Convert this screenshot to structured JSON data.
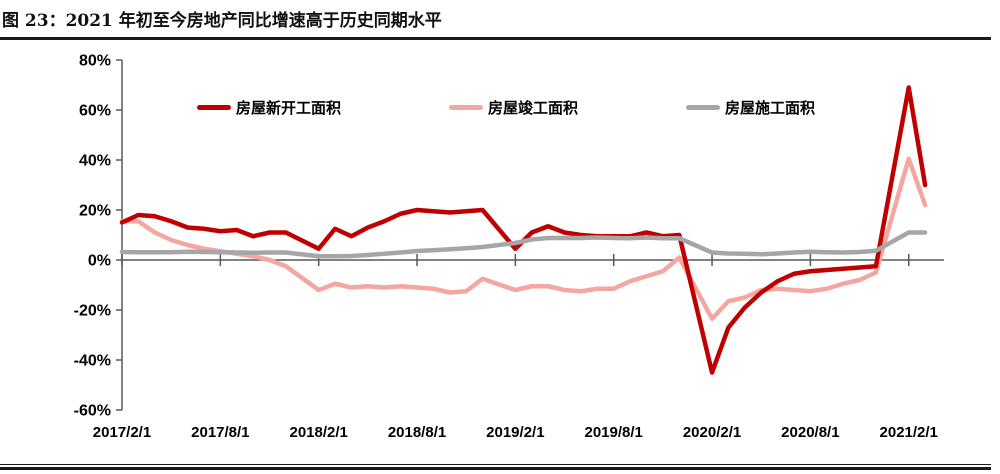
{
  "page": {
    "title": "图 23：2021 年初至今房地产同比增速高于历史同期水平"
  },
  "chart_data": {
    "type": "line",
    "unit": "percent, YoY growth",
    "grid": false,
    "legend_position": "top",
    "axis_color": "#595959",
    "ylim": [
      -60,
      80
    ],
    "ytick_step": 20,
    "y_ticks": [
      "80%",
      "60%",
      "40%",
      "20%",
      "0%",
      "-20%",
      "-40%",
      "-60%"
    ],
    "x_tick_labels": [
      "2017/2/1",
      "2017/8/1",
      "2018/2/1",
      "2018/8/1",
      "2019/2/1",
      "2019/8/1",
      "2020/2/1",
      "2020/8/1",
      "2021/2/1"
    ],
    "x_categories": [
      "2017/2",
      "2017/3",
      "2017/4",
      "2017/5",
      "2017/6",
      "2017/7",
      "2017/8",
      "2017/9",
      "2017/10",
      "2017/11",
      "2017/12",
      "2018/2",
      "2018/3",
      "2018/4",
      "2018/5",
      "2018/6",
      "2018/7",
      "2018/8",
      "2018/9",
      "2018/10",
      "2018/11",
      "2018/12",
      "2019/2",
      "2019/3",
      "2019/4",
      "2019/5",
      "2019/6",
      "2019/7",
      "2019/8",
      "2019/9",
      "2019/10",
      "2019/11",
      "2019/12",
      "2020/2",
      "2020/3",
      "2020/4",
      "2020/5",
      "2020/6",
      "2020/7",
      "2020/8",
      "2020/9",
      "2020/10",
      "2020/11",
      "2020/12",
      "2021/2",
      "2021/3"
    ],
    "series": [
      {
        "name": "房屋新开工面积",
        "color": "#c00000",
        "values": [
          15,
          18,
          17.5,
          15.5,
          13,
          12.5,
          11.5,
          12,
          9.5,
          11,
          11,
          4.5,
          12.5,
          9.5,
          13,
          15.5,
          18.5,
          20,
          19.5,
          19,
          19.5,
          20,
          4.5,
          11,
          13.5,
          11,
          10,
          9.5,
          9.5,
          9.5,
          11,
          9.5,
          10,
          -45,
          -27,
          -19,
          -13,
          -8.5,
          -5.5,
          -4.5,
          -4,
          -3.5,
          -3,
          -2.5,
          69,
          30
        ]
      },
      {
        "name": "房屋竣工面积",
        "color": "#f4a7a0",
        "values": [
          15.5,
          15.5,
          11,
          8,
          6,
          4.5,
          3.5,
          2.5,
          1.5,
          0,
          -2.5,
          -12,
          -9.5,
          -11,
          -10.5,
          -11,
          -10.5,
          -11,
          -11.5,
          -13,
          -12.5,
          -7.5,
          -12,
          -10.5,
          -10.5,
          -12,
          -12.5,
          -11.5,
          -11.5,
          -8.5,
          -6.5,
          -4.5,
          1,
          -23.5,
          -16.5,
          -15,
          -12,
          -11.5,
          -12,
          -12.5,
          -11.5,
          -9.5,
          -8,
          -5,
          40.5,
          22
        ]
      },
      {
        "name": "房屋施工面积",
        "color": "#a6a6a6",
        "values": [
          3.2,
          3.1,
          3.1,
          3.1,
          3.3,
          3.2,
          3.1,
          3,
          2.9,
          3,
          3,
          1.5,
          1.5,
          1.6,
          2,
          2.5,
          3,
          3.6,
          3.9,
          4.3,
          4.7,
          5.2,
          6.8,
          8.2,
          8.8,
          8.8,
          8.8,
          9,
          8.8,
          8.7,
          9,
          8.7,
          8.7,
          3,
          2.6,
          2.5,
          2.3,
          2.6,
          3,
          3.3,
          3.1,
          3,
          3.2,
          3.7,
          11,
          11
        ]
      }
    ]
  }
}
